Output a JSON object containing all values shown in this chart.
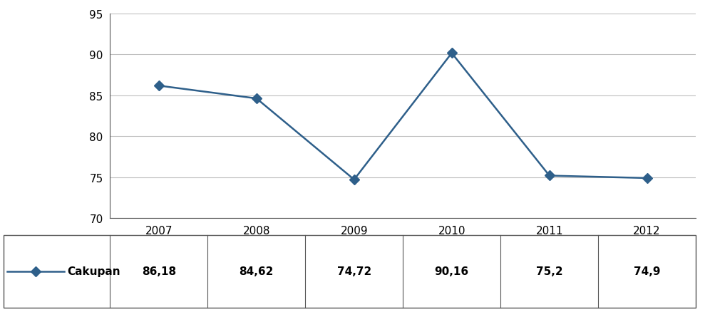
{
  "years": [
    "2007",
    "2008",
    "2009",
    "2010",
    "2011",
    "2012"
  ],
  "values": [
    86.18,
    84.62,
    74.72,
    90.16,
    75.2,
    74.9
  ],
  "ylim": [
    70,
    95
  ],
  "yticks": [
    70,
    75,
    80,
    85,
    90,
    95
  ],
  "line_color": "#2E5F8A",
  "marker_color": "#2E5F8A",
  "marker_style": "D",
  "marker_size": 7,
  "line_width": 1.8,
  "legend_label": "Cakupan",
  "table_values": [
    "86,18",
    "84,62",
    "74,72",
    "90,16",
    "75,2",
    "74,9"
  ],
  "background_color": "#ffffff",
  "grid_color": "#bfbfbf",
  "font_size": 11
}
